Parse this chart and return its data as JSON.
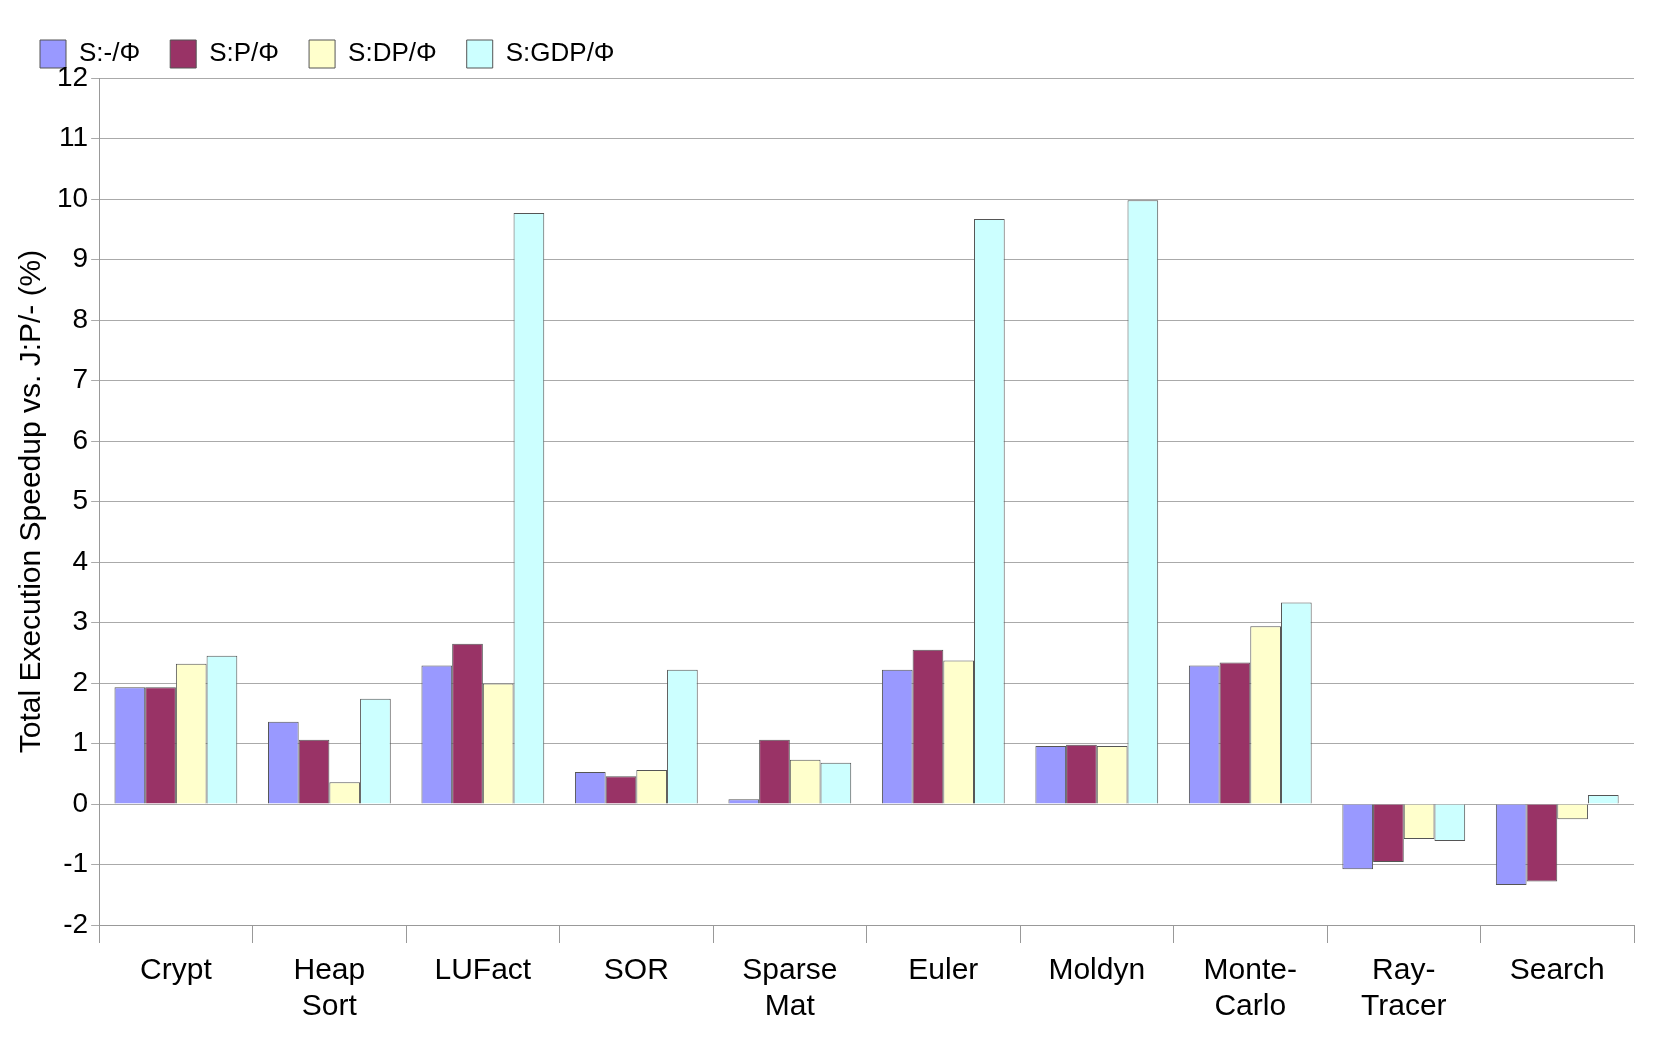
{
  "chart_data": {
    "type": "bar",
    "ylabel": "Total Execution Speedup vs. J:P/- (%)",
    "categories": [
      "Crypt",
      "Heap Sort",
      "LUFact",
      "SOR",
      "Sparse Mat",
      "Euler",
      "Moldyn",
      "Monte-Carlo",
      "Ray-Tracer",
      "Search"
    ],
    "series": [
      {
        "name": "S:-/Φ",
        "color": "#9999ff",
        "values": [
          1.93,
          1.36,
          2.29,
          0.53,
          0.08,
          2.22,
          0.96,
          2.29,
          -1.08,
          -1.34
        ]
      },
      {
        "name": "S:P/Φ",
        "color": "#993366",
        "values": [
          1.93,
          1.06,
          2.65,
          0.46,
          1.06,
          2.55,
          0.98,
          2.34,
          -0.96,
          -1.28
        ]
      },
      {
        "name": "S:DP/Φ",
        "color": "#ffffcc",
        "values": [
          2.32,
          0.36,
          1.99,
          0.56,
          0.73,
          2.37,
          0.96,
          2.94,
          -0.58,
          -0.25
        ]
      },
      {
        "name": "S:GDP/Φ",
        "color": "#ccffff",
        "values": [
          2.45,
          1.74,
          9.77,
          2.22,
          0.68,
          9.67,
          9.98,
          3.33,
          -0.61,
          0.15
        ]
      }
    ],
    "ylim": [
      -2,
      12
    ],
    "yticks": [
      -2,
      -1,
      0,
      1,
      2,
      3,
      4,
      5,
      6,
      7,
      8,
      9,
      10,
      11,
      12
    ],
    "grid": "y",
    "legend": "top left"
  }
}
